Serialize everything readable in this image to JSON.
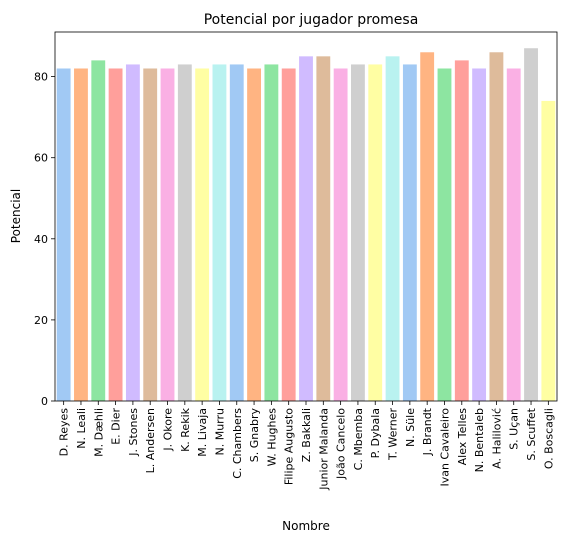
{
  "chart_data": {
    "type": "bar",
    "title": "Potencial por jugador promesa",
    "xlabel": "Nombre",
    "ylabel": "Potencial",
    "ylim": [
      0,
      91
    ],
    "yticks": [
      0,
      20,
      40,
      60,
      80
    ],
    "grid": false,
    "categories": [
      "D. Reyes",
      "N. Leali",
      "M. Dæhli",
      "E. Dier",
      "J. Stones",
      "L. Andersen",
      "J. Okore",
      "K. Rekik",
      "M. Livaja",
      "N. Murru",
      "C. Chambers",
      "S. Gnabry",
      "W. Hughes",
      "Filipe Augusto",
      "Z. Bakkali",
      "Junior Malanda",
      "João Cancelo",
      "C. Mbemba",
      "P. Dybala",
      "T. Werner",
      "N. Süle",
      "J. Brandt",
      "Ivan Cavaleiro",
      "Alex Telles",
      "N. Bentaleb",
      "A. Halilović",
      "S. Uçan",
      "S. Scuffet",
      "O. Boscagli"
    ],
    "values": [
      82,
      82,
      84,
      82,
      83,
      82,
      82,
      83,
      82,
      83,
      83,
      82,
      83,
      82,
      85,
      85,
      82,
      83,
      83,
      85,
      83,
      86,
      82,
      84,
      82,
      86,
      82,
      87,
      74
    ],
    "colors": [
      "#a1c9f4",
      "#ffb482",
      "#8de5a1",
      "#ff9f9b",
      "#d0bbff",
      "#debb9b",
      "#fab0e4",
      "#cfcfcf",
      "#fffea3",
      "#b9f2f0"
    ]
  }
}
